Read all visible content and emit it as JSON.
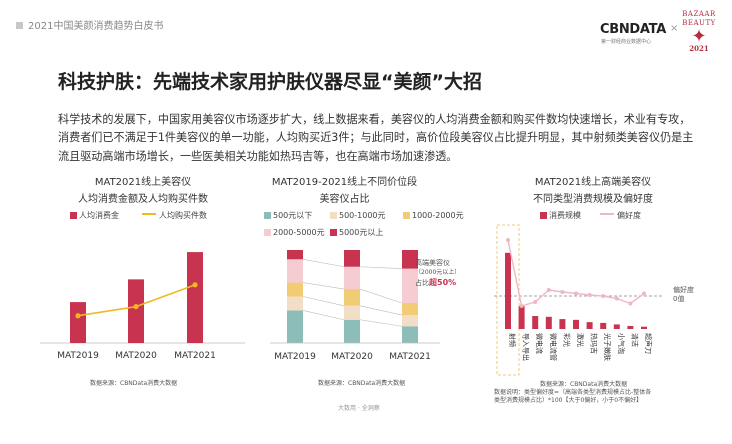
{
  "header": {
    "label": "2021中国美颜消费趋势白皮书"
  },
  "logo": {
    "brand": "CBNDATA",
    "sub": "第一财经商业数据中心",
    "sep": "×",
    "badge_top": "BAZAAR",
    "badge_mid": "BEAUTY",
    "badge_year": "2021"
  },
  "title": "科技护肤：先端技术家用护肤仪器尽显“美颜”大招",
  "paragraph": "科学技术的发展下，中国家用美容仪市场逐步扩大，线上数据来看，美容仪的人均消费金额和购买件数均快速增长，术业有专攻，消费者们已不满足于1件美容仪的单一功能，人均购买近3件；与此同时，高价位段美容仪占比提升明显，其中射频类美容仪仍是主流且驱动高端市场增长，一些医美相关功能如热玛吉等，也在高端市场加速渗透。",
  "footer": "大数用 · 全洞察",
  "colors": {
    "red": "#c8334f",
    "orange": "#f0b823",
    "teal": "#8cbdb8",
    "beige": "#f2ddc6",
    "yellow": "#f2cc74",
    "pink": "#f4ccd2",
    "line_pink": "#efb7c3"
  },
  "chart_data": [
    {
      "type": "bar",
      "title": "MAT2021线上美容仪",
      "subtitle": "人均消费金额及人均购买件数",
      "categories": [
        "MAT2019",
        "MAT2020",
        "MAT2021"
      ],
      "series": [
        {
          "name": "人均消费金",
          "kind": "bar",
          "values": [
            45,
            70,
            100
          ]
        },
        {
          "name": "人均购买件数",
          "kind": "line",
          "values": [
            30,
            40,
            64
          ]
        }
      ],
      "ylim": [
        0,
        110
      ],
      "source": "数据来源：CBNData消费大数据"
    },
    {
      "type": "bar",
      "stacked": true,
      "title": "MAT2019-2021线上不同价位段",
      "subtitle": "美容仪占比",
      "categories": [
        "MAT2019",
        "MAT2020",
        "MAT2021"
      ],
      "series": [
        {
          "name": "500元以下",
          "values": [
            35,
            25,
            18
          ]
        },
        {
          "name": "500-1000元",
          "values": [
            15,
            15,
            12
          ]
        },
        {
          "name": "1000-2000元",
          "values": [
            15,
            18,
            13
          ]
        },
        {
          "name": "2000-5000元",
          "values": [
            25,
            24,
            37
          ]
        },
        {
          "name": "5000元以上",
          "values": [
            10,
            18,
            20
          ]
        }
      ],
      "ylim": [
        0,
        100
      ],
      "annotation": {
        "line1": "高端美容仪",
        "line2": "（2000元以上）",
        "line3_prefix": "占比",
        "line3_value": "超50%"
      },
      "source": "数据来源：CBNData消费大数据"
    },
    {
      "type": "bar",
      "title": "MAT2021线上高端美容仪",
      "subtitle": "不同类型消费规模及偏好度",
      "categories": [
        "射频",
        "导入导出",
        "微电流",
        "微电流管",
        "彩光",
        "激光",
        "热玛吉",
        "光子嫩肤",
        "小气泡",
        "清洁",
        "超声刀"
      ],
      "series": [
        {
          "name": "消费规模",
          "kind": "bar",
          "values": [
            100,
            30,
            17,
            16,
            13,
            12,
            9,
            8,
            6,
            4,
            3
          ]
        },
        {
          "name": "偏好度",
          "kind": "line",
          "values": [
            100,
            -20,
            -12,
            12,
            8,
            5,
            2,
            0,
            -5,
            -15,
            5
          ]
        }
      ],
      "ylim": [
        0,
        105
      ],
      "reference_line": {
        "label_line1": "偏好度",
        "label_line2": "0值"
      },
      "source": "数据来源：CBNData消费大数据",
      "note_line1": "数据说明：类型偏好度=（高端各类型消费规模占比-整体各",
      "note_line2": "类型消费规模占比）*100【大于0偏好，小于0不偏好】"
    }
  ]
}
